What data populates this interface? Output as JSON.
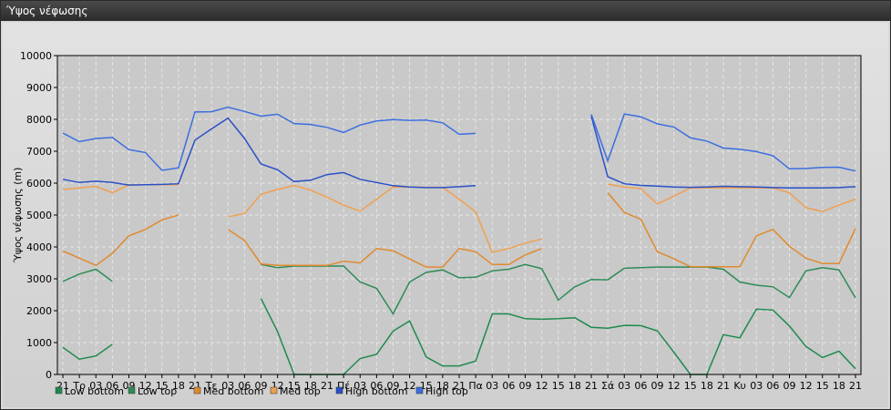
{
  "window": {
    "title": "Ύψος νέφωσης"
  },
  "chart_data": {
    "type": "line",
    "title": "",
    "xlabel": "",
    "ylabel": "Ύψος νέφωσης (m)",
    "ylim": [
      0,
      10000
    ],
    "yticks": [
      0,
      1000,
      2000,
      3000,
      4000,
      5000,
      6000,
      7000,
      8000,
      9000,
      10000
    ],
    "grid": true,
    "legend_position": "bottom-left",
    "categories": [
      "21",
      "Τρ",
      "03",
      "06",
      "09",
      "12",
      "15",
      "18",
      "21",
      "Τε",
      "03",
      "06",
      "09",
      "12",
      "15",
      "18",
      "21",
      "Πέ",
      "03",
      "06",
      "09",
      "12",
      "15",
      "18",
      "21",
      "Πα",
      "03",
      "06",
      "09",
      "12",
      "15",
      "18",
      "21",
      "Σά",
      "03",
      "06",
      "09",
      "12",
      "15",
      "18",
      "21",
      "Κυ",
      "03",
      "06",
      "09",
      "12",
      "15",
      "18",
      "21"
    ],
    "series": [
      {
        "name": "Low bottom",
        "color": "#1e8a4e",
        "values": [
          850,
          480,
          580,
          950,
          null,
          null,
          null,
          null,
          null,
          null,
          null,
          null,
          2380,
          1350,
          0,
          0,
          0,
          0,
          500,
          630,
          1360,
          1680,
          550,
          270,
          270,
          420,
          1900,
          1900,
          1750,
          1730,
          1750,
          1780,
          1480,
          1450,
          1540,
          1530,
          1370,
          700,
          0,
          0,
          1250,
          1150,
          2050,
          2020,
          1520,
          880,
          530,
          730,
          180
        ]
      },
      {
        "name": "Low top",
        "color": "#2e8b57",
        "values": [
          2920,
          3150,
          3300,
          2920,
          null,
          null,
          null,
          null,
          null,
          null,
          null,
          null,
          3450,
          3350,
          3400,
          3400,
          3400,
          3400,
          2900,
          2700,
          1900,
          2900,
          3200,
          3280,
          3030,
          3050,
          3250,
          3300,
          3450,
          3320,
          2330,
          2750,
          2980,
          2970,
          3330,
          3350,
          3370,
          3370,
          3370,
          3370,
          3300,
          2900,
          2800,
          2750,
          2410,
          3250,
          3350,
          3280,
          2400
        ]
      },
      {
        "name": "Med bottom",
        "color": "#e08a2e",
        "values": [
          3870,
          3650,
          3420,
          3800,
          4350,
          4550,
          4850,
          5000,
          null,
          null,
          4550,
          4200,
          3470,
          3420,
          3420,
          3420,
          3420,
          3550,
          3500,
          3950,
          3880,
          3620,
          3370,
          3370,
          3950,
          3850,
          3450,
          3450,
          3750,
          3950,
          null,
          null,
          null,
          5700,
          5080,
          4870,
          3850,
          3630,
          3380,
          3380,
          3380,
          3380,
          4350,
          4550,
          4020,
          3650,
          3480,
          3480,
          4580
        ]
      },
      {
        "name": "Med top",
        "color": "#f0a050",
        "values": [
          5800,
          5850,
          5900,
          5700,
          5950,
          5950,
          5950,
          5950,
          null,
          null,
          4950,
          5050,
          5650,
          5800,
          5930,
          5780,
          5560,
          5310,
          5120,
          5500,
          5880,
          5880,
          5870,
          5870,
          5500,
          5100,
          3830,
          3950,
          4120,
          4250,
          null,
          null,
          null,
          5970,
          5880,
          5830,
          5350,
          5590,
          5850,
          5850,
          5850,
          5850,
          5850,
          5850,
          5700,
          5230,
          5110,
          5310,
          5500
        ]
      },
      {
        "name": "High bottom",
        "color": "#2a50c8",
        "values": [
          6120,
          6020,
          6060,
          6020,
          5940,
          5950,
          5960,
          5980,
          7350,
          7700,
          8040,
          7400,
          6600,
          6420,
          6050,
          6090,
          6270,
          6330,
          6120,
          6020,
          5920,
          5880,
          5860,
          5860,
          5890,
          5920,
          null,
          null,
          null,
          null,
          null,
          null,
          8100,
          6200,
          5980,
          5930,
          5910,
          5880,
          5870,
          5880,
          5900,
          5890,
          5880,
          5860,
          5850,
          5850,
          5850,
          5860,
          5890
        ]
      },
      {
        "name": "High top",
        "color": "#3c6ee0",
        "values": [
          7570,
          7300,
          7400,
          7430,
          7050,
          6960,
          6400,
          6480,
          8230,
          8240,
          8380,
          8250,
          8100,
          8160,
          7870,
          7840,
          7750,
          7590,
          7820,
          7950,
          7990,
          7970,
          7980,
          7890,
          7530,
          7560,
          null,
          null,
          null,
          null,
          null,
          null,
          8160,
          6700,
          8170,
          8080,
          7860,
          7760,
          7420,
          7320,
          7100,
          7060,
          6990,
          6860,
          6450,
          6460,
          6490,
          6500,
          6380
        ]
      }
    ]
  }
}
